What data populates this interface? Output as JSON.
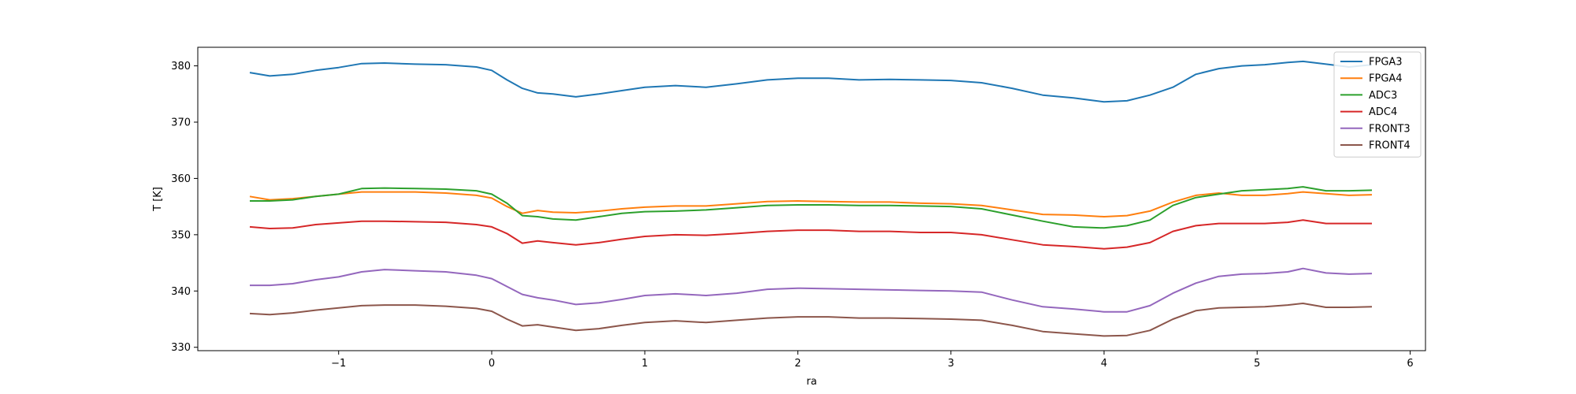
{
  "chart_data": {
    "type": "line",
    "title": "",
    "xlabel": "ra",
    "ylabel": "T [K]",
    "xlim": [
      -1.92,
      6.1
    ],
    "ylim": [
      329.4,
      383.3
    ],
    "xticks": [
      -1,
      0,
      1,
      2,
      3,
      4,
      5,
      6
    ],
    "xtick_labels": [
      "−1",
      "0",
      "1",
      "2",
      "3",
      "4",
      "5",
      "6"
    ],
    "yticks": [
      330,
      340,
      350,
      360,
      370,
      380
    ],
    "ytick_labels": [
      "330",
      "340",
      "350",
      "360",
      "370",
      "380"
    ],
    "grid": false,
    "legend_position": "top-right",
    "x": [
      -1.58,
      -1.45,
      -1.3,
      -1.15,
      -1.0,
      -0.85,
      -0.7,
      -0.5,
      -0.3,
      -0.1,
      0.0,
      0.1,
      0.2,
      0.3,
      0.4,
      0.55,
      0.7,
      0.85,
      1.0,
      1.2,
      1.4,
      1.6,
      1.8,
      2.0,
      2.2,
      2.4,
      2.6,
      2.8,
      3.0,
      3.2,
      3.4,
      3.6,
      3.8,
      4.0,
      4.15,
      4.3,
      4.45,
      4.6,
      4.75,
      4.9,
      5.05,
      5.2,
      5.3,
      5.45,
      5.6,
      5.75
    ],
    "series": [
      {
        "name": "FPGA3",
        "color": "#1f77b4",
        "values": [
          378.8,
          378.2,
          378.5,
          379.2,
          379.7,
          380.4,
          380.5,
          380.3,
          380.2,
          379.8,
          379.2,
          377.5,
          376.0,
          375.2,
          375.0,
          374.5,
          375.0,
          375.6,
          376.2,
          376.5,
          376.2,
          376.8,
          377.5,
          377.8,
          377.8,
          377.5,
          377.6,
          377.5,
          377.4,
          377.0,
          376.0,
          374.8,
          374.3,
          373.6,
          373.8,
          374.8,
          376.2,
          378.5,
          379.5,
          380.0,
          380.2,
          380.6,
          380.8,
          380.3,
          379.8,
          380.2
        ]
      },
      {
        "name": "FPGA4",
        "color": "#ff7f0e",
        "values": [
          356.8,
          356.2,
          356.4,
          356.8,
          357.2,
          357.6,
          357.6,
          357.6,
          357.4,
          357.0,
          356.5,
          355.0,
          353.8,
          354.3,
          354.0,
          353.9,
          354.2,
          354.6,
          354.9,
          355.1,
          355.1,
          355.5,
          355.9,
          356.0,
          355.9,
          355.8,
          355.8,
          355.6,
          355.5,
          355.2,
          354.4,
          353.6,
          353.5,
          353.2,
          353.4,
          354.2,
          355.8,
          357.0,
          357.4,
          357.0,
          357.0,
          357.3,
          357.6,
          357.3,
          357.0,
          357.1
        ]
      },
      {
        "name": "ADC3",
        "color": "#2ca02c",
        "values": [
          356.0,
          356.0,
          356.2,
          356.8,
          357.2,
          358.2,
          358.3,
          358.2,
          358.1,
          357.8,
          357.2,
          355.6,
          353.4,
          353.2,
          352.8,
          352.6,
          353.2,
          353.8,
          354.1,
          354.2,
          354.4,
          354.8,
          355.2,
          355.3,
          355.3,
          355.2,
          355.2,
          355.1,
          355.0,
          354.6,
          353.5,
          352.4,
          351.4,
          351.2,
          351.6,
          352.6,
          355.2,
          356.6,
          357.2,
          357.8,
          358.0,
          358.2,
          358.5,
          357.8,
          357.8,
          357.9
        ]
      },
      {
        "name": "ADC4",
        "color": "#d62728",
        "values": [
          351.4,
          351.1,
          351.2,
          351.8,
          352.1,
          352.4,
          352.4,
          352.3,
          352.2,
          351.8,
          351.4,
          350.2,
          348.5,
          348.9,
          348.6,
          348.2,
          348.6,
          349.2,
          349.7,
          350.0,
          349.9,
          350.2,
          350.6,
          350.8,
          350.8,
          350.6,
          350.6,
          350.4,
          350.4,
          350.0,
          349.1,
          348.2,
          347.9,
          347.5,
          347.8,
          348.6,
          350.6,
          351.6,
          352.0,
          352.0,
          352.0,
          352.2,
          352.6,
          352.0,
          352.0,
          352.0
        ]
      },
      {
        "name": "FRONT3",
        "color": "#9467bd",
        "values": [
          341.0,
          341.0,
          341.3,
          342.0,
          342.5,
          343.4,
          343.8,
          343.6,
          343.4,
          342.8,
          342.2,
          340.8,
          339.4,
          338.8,
          338.4,
          337.6,
          337.9,
          338.5,
          339.2,
          339.5,
          339.2,
          339.6,
          340.3,
          340.5,
          340.4,
          340.3,
          340.2,
          340.1,
          340.0,
          339.8,
          338.4,
          337.2,
          336.8,
          336.3,
          336.3,
          337.4,
          339.6,
          341.4,
          342.6,
          343.0,
          343.1,
          343.4,
          344.0,
          343.2,
          343.0,
          343.1
        ]
      },
      {
        "name": "FRONT4",
        "color": "#8c564b",
        "values": [
          336.0,
          335.8,
          336.1,
          336.6,
          337.0,
          337.4,
          337.5,
          337.5,
          337.3,
          336.9,
          336.4,
          335.0,
          333.8,
          334.0,
          333.6,
          333.0,
          333.3,
          333.9,
          334.4,
          334.7,
          334.4,
          334.8,
          335.2,
          335.4,
          335.4,
          335.2,
          335.2,
          335.1,
          335.0,
          334.8,
          333.9,
          332.8,
          332.4,
          332.0,
          332.1,
          333.0,
          335.0,
          336.5,
          337.0,
          337.1,
          337.2,
          337.5,
          337.8,
          337.1,
          337.1,
          337.2
        ]
      }
    ]
  }
}
